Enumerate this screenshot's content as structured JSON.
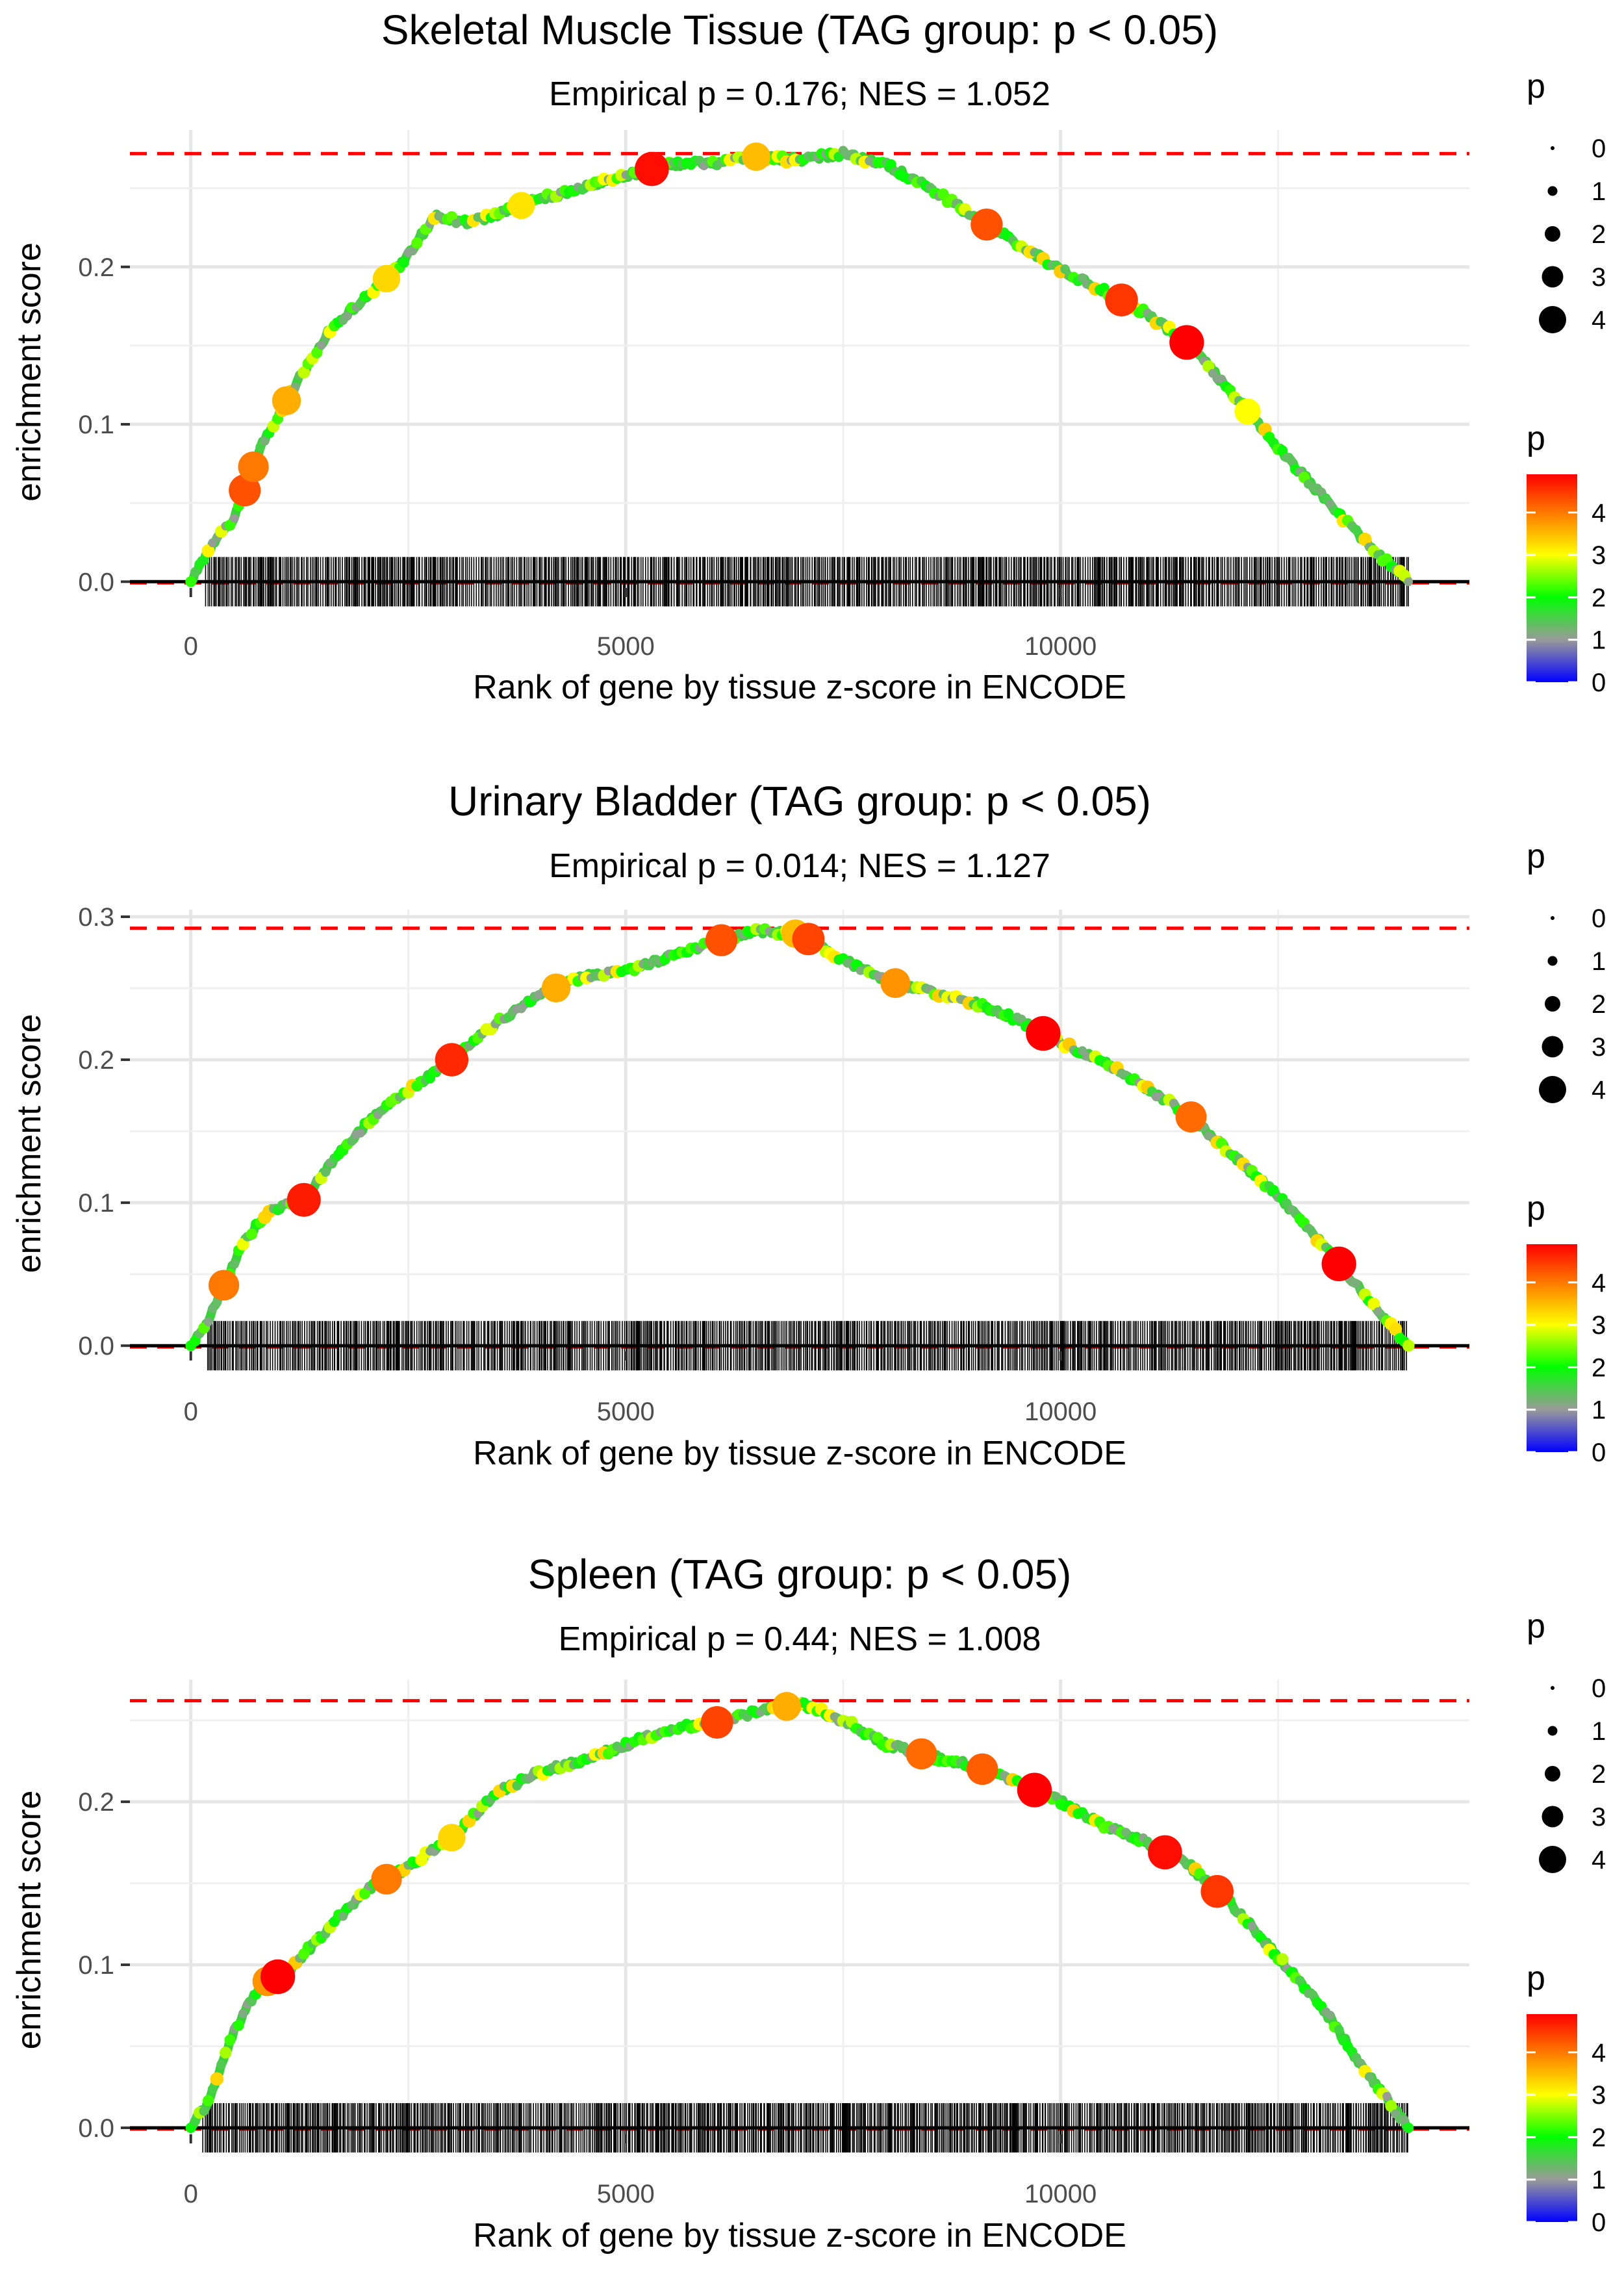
{
  "chart_data": [
    {
      "type": "line",
      "title": "Skeletal Muscle Tissue (TAG group: p < 0.05)",
      "subtitle": "Empirical p = 0.176; NES = 1.052",
      "xlabel": "Rank of gene by tissue z-score in ENCODE",
      "ylabel": "enrichment score",
      "xlim": [
        -700,
        14700
      ],
      "ylim": [
        -0.004,
        0.287
      ],
      "x_ticks": [
        0,
        5000,
        10000
      ],
      "x_tick_labels": [
        "0",
        "5000",
        "10000"
      ],
      "y_ticks": [
        0.0,
        0.1,
        0.2
      ],
      "y_tick_labels": [
        "0.0",
        "0.1",
        "0.2"
      ],
      "max_es": 0.272,
      "n_genes": 14000,
      "curve_x": [
        0,
        200,
        500,
        800,
        1200,
        1600,
        2000,
        2400,
        2800,
        3200,
        3600,
        4000,
        4500,
        5000,
        5500,
        6000,
        6500,
        7000,
        7500,
        8000,
        8500,
        9000,
        9500,
        10000,
        10500,
        11000,
        11500,
        12000,
        12500,
        13000,
        13500,
        14000
      ],
      "curve_y": [
        0,
        0.02,
        0.04,
        0.085,
        0.125,
        0.16,
        0.18,
        0.2,
        0.232,
        0.228,
        0.235,
        0.243,
        0.25,
        0.258,
        0.265,
        0.266,
        0.27,
        0.268,
        0.272,
        0.265,
        0.25,
        0.232,
        0.215,
        0.198,
        0.185,
        0.17,
        0.15,
        0.118,
        0.085,
        0.055,
        0.025,
        0
      ],
      "highlight_points": [
        {
          "x": 620,
          "p": 4.3
        },
        {
          "x": 720,
          "p": 4.0
        },
        {
          "x": 1100,
          "p": 3.6
        },
        {
          "x": 2250,
          "p": 3.3
        },
        {
          "x": 3800,
          "p": 3.2
        },
        {
          "x": 5300,
          "p": 4.8
        },
        {
          "x": 6500,
          "p": 3.5
        },
        {
          "x": 9150,
          "p": 4.3
        },
        {
          "x": 10700,
          "p": 4.5
        },
        {
          "x": 11450,
          "p": 4.9
        },
        {
          "x": 12150,
          "p": 3.0
        }
      ]
    },
    {
      "type": "line",
      "title": "Urinary Bladder (TAG group: p < 0.05)",
      "subtitle": "Empirical p = 0.014; NES = 1.127",
      "xlabel": "Rank of gene by tissue z-score in ENCODE",
      "ylabel": "enrichment score",
      "xlim": [
        -700,
        14700
      ],
      "ylim": [
        -0.004,
        0.305
      ],
      "x_ticks": [
        0,
        5000,
        10000
      ],
      "x_tick_labels": [
        "0",
        "5000",
        "10000"
      ],
      "y_ticks": [
        0.0,
        0.1,
        0.2,
        0.3
      ],
      "y_tick_labels": [
        "0.0",
        "0.1",
        "0.2",
        "0.3"
      ],
      "max_es": 0.292,
      "n_genes": 14000,
      "curve_x": [
        0,
        200,
        400,
        600,
        900,
        1300,
        1700,
        2100,
        2500,
        3000,
        3500,
        4000,
        4500,
        5000,
        5500,
        6000,
        6500,
        7000,
        7500,
        8000,
        8500,
        9000,
        9500,
        10000,
        10500,
        11000,
        11500,
        12000,
        12500,
        13000,
        13500,
        14000
      ],
      "curve_y": [
        0,
        0.018,
        0.045,
        0.072,
        0.095,
        0.102,
        0.135,
        0.16,
        0.178,
        0.2,
        0.225,
        0.245,
        0.258,
        0.262,
        0.272,
        0.282,
        0.29,
        0.288,
        0.27,
        0.255,
        0.248,
        0.24,
        0.228,
        0.212,
        0.198,
        0.18,
        0.16,
        0.132,
        0.105,
        0.072,
        0.035,
        0
      ],
      "highlight_points": [
        {
          "x": 380,
          "p": 4.0
        },
        {
          "x": 1300,
          "p": 4.7
        },
        {
          "x": 3000,
          "p": 4.6
        },
        {
          "x": 4200,
          "p": 3.6
        },
        {
          "x": 6100,
          "p": 4.3
        },
        {
          "x": 6950,
          "p": 3.5
        },
        {
          "x": 7100,
          "p": 4.4
        },
        {
          "x": 8100,
          "p": 3.8
        },
        {
          "x": 9800,
          "p": 4.9
        },
        {
          "x": 11500,
          "p": 4.1
        },
        {
          "x": 13200,
          "p": 4.9
        }
      ]
    },
    {
      "type": "line",
      "title": "Spleen (TAG group: p < 0.05)",
      "subtitle": "Empirical p = 0.44; NES = 1.008",
      "xlabel": "Rank of gene by tissue z-score in ENCODE",
      "ylabel": "enrichment score",
      "xlim": [
        -700,
        14700
      ],
      "ylim": [
        -0.004,
        0.275
      ],
      "x_ticks": [
        0,
        5000,
        10000
      ],
      "x_tick_labels": [
        "0",
        "5000",
        "10000"
      ],
      "y_ticks": [
        0.0,
        0.1,
        0.2
      ],
      "y_tick_labels": [
        "0.0",
        "0.1",
        "0.2"
      ],
      "max_es": 0.262,
      "n_genes": 14000,
      "curve_x": [
        0,
        200,
        500,
        800,
        1100,
        1500,
        2000,
        2500,
        3000,
        3500,
        4000,
        4500,
        5000,
        5500,
        6000,
        6500,
        7000,
        7500,
        8000,
        8500,
        9000,
        9500,
        10000,
        10500,
        11000,
        11500,
        12000,
        12500,
        13000,
        13500,
        14000
      ],
      "curve_y": [
        0,
        0.015,
        0.06,
        0.088,
        0.095,
        0.118,
        0.145,
        0.16,
        0.178,
        0.205,
        0.218,
        0.225,
        0.235,
        0.245,
        0.248,
        0.255,
        0.26,
        0.25,
        0.235,
        0.228,
        0.222,
        0.212,
        0.2,
        0.185,
        0.175,
        0.16,
        0.135,
        0.105,
        0.075,
        0.035,
        0
      ],
      "highlight_points": [
        {
          "x": 880,
          "p": 3.8
        },
        {
          "x": 1000,
          "p": 4.9
        },
        {
          "x": 2250,
          "p": 4.0
        },
        {
          "x": 3000,
          "p": 3.3
        },
        {
          "x": 6050,
          "p": 4.4
        },
        {
          "x": 6850,
          "p": 3.6
        },
        {
          "x": 8400,
          "p": 4.1
        },
        {
          "x": 9100,
          "p": 4.2
        },
        {
          "x": 9700,
          "p": 4.9
        },
        {
          "x": 11200,
          "p": 4.8
        },
        {
          "x": 11800,
          "p": 4.5
        }
      ]
    }
  ],
  "legend": {
    "size_title": "p",
    "size_labels": [
      "0",
      "1",
      "2",
      "3",
      "4"
    ],
    "color_title": "p",
    "color_labels": [
      "4",
      "3",
      "2",
      "1",
      "0"
    ],
    "colors": [
      "#0000ff",
      "#9a9a9a",
      "#00ff00",
      "#ffff00",
      "#ff0000"
    ]
  }
}
